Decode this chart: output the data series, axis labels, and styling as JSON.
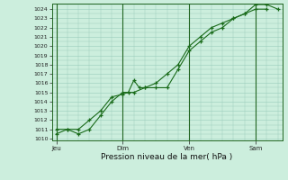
{
  "title": "",
  "xlabel": "Pression niveau de la mer( hPa )",
  "ylabel": "",
  "ylim": [
    1010,
    1024
  ],
  "yticks": [
    1010,
    1011,
    1012,
    1013,
    1014,
    1015,
    1016,
    1017,
    1018,
    1019,
    1020,
    1021,
    1022,
    1023,
    1024
  ],
  "xtick_labels": [
    "Jeu",
    "Dim",
    "Ven",
    "Sam"
  ],
  "xtick_positions": [
    0,
    3,
    6,
    9
  ],
  "bg_color": "#cceedd",
  "grid_color": "#99ccbb",
  "line_color": "#1a6b1a",
  "series1_x": [
    0,
    0.5,
    1.0,
    1.5,
    2.0,
    2.5,
    3.0,
    3.25,
    3.5,
    3.75,
    4.0,
    4.5,
    5.0,
    5.5,
    6.0,
    6.5,
    7.0,
    7.5,
    8.0,
    8.5,
    9.0,
    9.5,
    10.0
  ],
  "series1_y": [
    1010.5,
    1011.0,
    1011.0,
    1012.0,
    1013.0,
    1014.5,
    1014.8,
    1015.0,
    1016.3,
    1015.5,
    1015.5,
    1016.0,
    1017.0,
    1018.0,
    1020.0,
    1021.0,
    1022.0,
    1022.5,
    1023.0,
    1023.5,
    1024.5,
    1024.5,
    1024.0
  ],
  "series2_x": [
    0,
    0.5,
    1.0,
    1.5,
    2.0,
    2.5,
    3.0,
    3.5,
    4.0,
    4.5,
    5.0,
    5.5,
    6.0,
    6.5,
    7.0,
    7.5,
    8.0,
    8.5,
    9.0,
    9.5
  ],
  "series2_y": [
    1011.0,
    1011.0,
    1010.5,
    1011.0,
    1012.5,
    1014.0,
    1015.0,
    1015.0,
    1015.5,
    1015.5,
    1015.5,
    1017.5,
    1019.5,
    1020.5,
    1021.5,
    1022.0,
    1023.0,
    1023.5,
    1024.0,
    1024.0
  ],
  "vline_positions": [
    0,
    3,
    6,
    9
  ],
  "figsize": [
    3.2,
    2.0
  ],
  "dpi": 100
}
